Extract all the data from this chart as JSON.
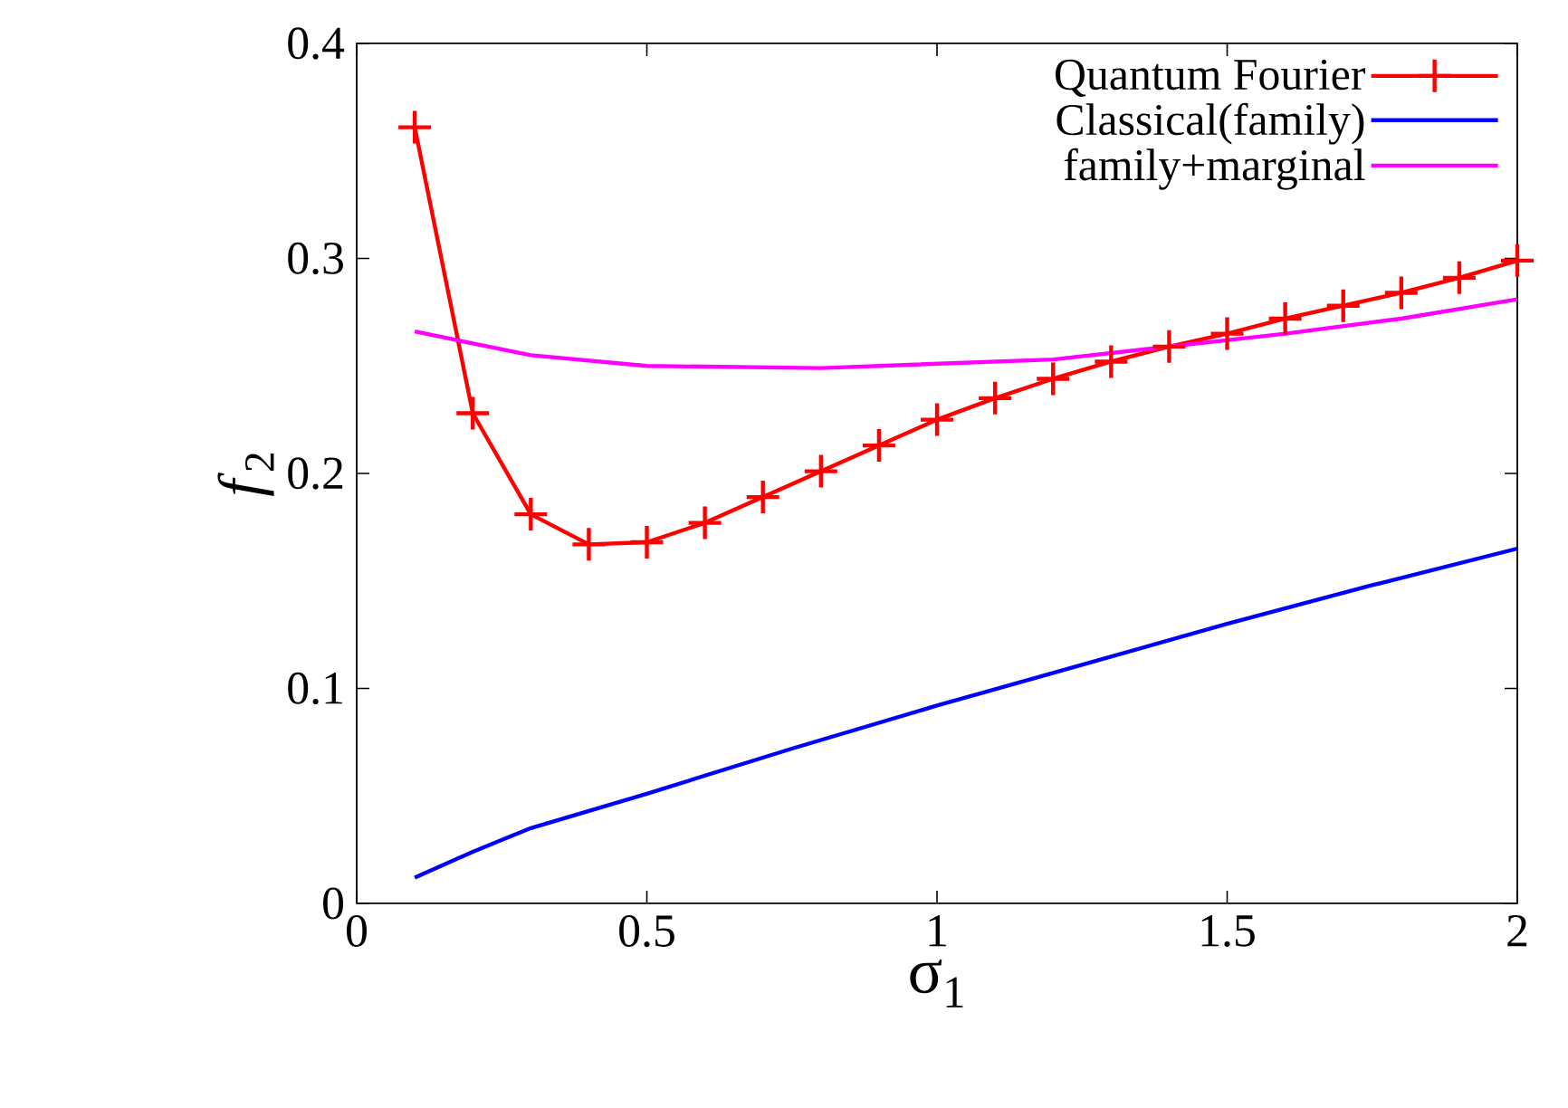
{
  "chart_data": {
    "type": "line",
    "xlabel": "σ$_{1}$",
    "ylabel": "*f*$_{2}$",
    "xlim": [
      0,
      2
    ],
    "ylim": [
      0,
      0.4
    ],
    "xticks": [
      0,
      0.5,
      1,
      1.5,
      2
    ],
    "yticks": [
      0,
      0.1,
      0.2,
      0.3,
      0.4
    ],
    "grid": false,
    "legend": "top right",
    "series": [
      {
        "name": "Quantum Fourier",
        "color": "#ff0000",
        "marker": "cross",
        "x": [
          0.1,
          0.2,
          0.3,
          0.4,
          0.5,
          0.6,
          0.7,
          0.8,
          0.9,
          1.0,
          1.1,
          1.2,
          1.3,
          1.4,
          1.5,
          1.6,
          1.7,
          1.8,
          1.9,
          2.0
        ],
        "values": [
          0.361,
          0.228,
          0.181,
          0.167,
          0.168,
          0.177,
          0.189,
          0.201,
          0.213,
          0.225,
          0.235,
          0.244,
          0.252,
          0.259,
          0.265,
          0.272,
          0.278,
          0.284,
          0.291,
          0.299
        ]
      },
      {
        "name": "Classical(family)",
        "color": "#0000ff",
        "marker": "none",
        "x": [
          0.1,
          0.2,
          0.3,
          0.5,
          0.75,
          1.0,
          1.25,
          1.5,
          1.75,
          2.0
        ],
        "values": [
          0.012,
          0.024,
          0.035,
          0.051,
          0.072,
          0.092,
          0.111,
          0.13,
          0.148,
          0.165
        ]
      },
      {
        "name": "family+marginal",
        "color": "#ff00ff",
        "marker": "none",
        "x": [
          0.1,
          0.3,
          0.5,
          0.8,
          1.0,
          1.2,
          1.4,
          1.6,
          1.8,
          2.0
        ],
        "values": [
          0.266,
          0.255,
          0.25,
          0.249,
          0.251,
          0.253,
          0.259,
          0.265,
          0.272,
          0.281
        ]
      }
    ]
  }
}
